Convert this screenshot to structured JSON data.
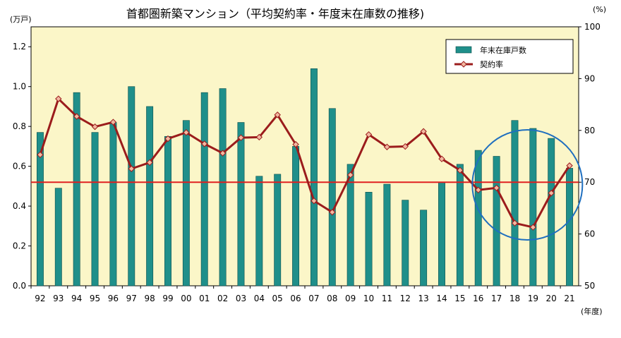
{
  "chart_data": {
    "type": "bar+line",
    "title": "首都圏新築マンション（平均契約率・年度末在庫数の推移)",
    "left_unit": "(万戸)",
    "right_unit": "(%)",
    "x_unit": "(年度)",
    "categories": [
      "92",
      "93",
      "94",
      "95",
      "96",
      "97",
      "98",
      "99",
      "00",
      "01",
      "02",
      "03",
      "04",
      "05",
      "06",
      "07",
      "08",
      "09",
      "10",
      "11",
      "12",
      "13",
      "14",
      "15",
      "16",
      "17",
      "18",
      "19",
      "20",
      "21"
    ],
    "left_axis": {
      "ticks": [
        "0.0",
        "0.2",
        "0.4",
        "0.6",
        "0.8",
        "1.0",
        "1.2"
      ],
      "range": [
        0,
        1.3
      ]
    },
    "right_axis": {
      "ticks": [
        "50",
        "60",
        "70",
        "80",
        "90",
        "100"
      ],
      "range": [
        50,
        100
      ]
    },
    "series": [
      {
        "name": "年末在庫戸数",
        "type": "bar",
        "axis": "left",
        "color": "#1f8f8a",
        "values": [
          0.77,
          0.49,
          0.97,
          0.77,
          0.82,
          1.0,
          0.9,
          0.75,
          0.83,
          0.97,
          0.99,
          0.82,
          0.55,
          0.56,
          0.7,
          1.09,
          0.89,
          0.61,
          0.47,
          0.51,
          0.43,
          0.38,
          0.52,
          0.61,
          0.68,
          0.65,
          0.83,
          0.79,
          0.74,
          0.59
        ]
      },
      {
        "name": "契約率",
        "type": "line",
        "axis": "right",
        "color": "#9b1c1c",
        "marker_color": "#f2b8a0",
        "values": [
          75.3,
          86.1,
          82.7,
          80.7,
          81.6,
          72.6,
          73.8,
          78.4,
          79.6,
          77.4,
          75.6,
          78.6,
          78.7,
          83.0,
          77.3,
          66.4,
          64.2,
          71.4,
          79.2,
          76.8,
          76.9,
          79.8,
          74.5,
          72.3,
          68.5,
          68.9,
          62.1,
          61.3,
          67.9,
          73.2
        ]
      }
    ],
    "reference_line": {
      "axis": "left",
      "value": 0.52,
      "color": "#e02020"
    },
    "highlight_circle": {
      "center_category_index": 27,
      "color": "#1f6fbf"
    },
    "legend": {
      "placement": "top-right"
    },
    "plot_background": "#fbf6c8",
    "grid": false
  }
}
